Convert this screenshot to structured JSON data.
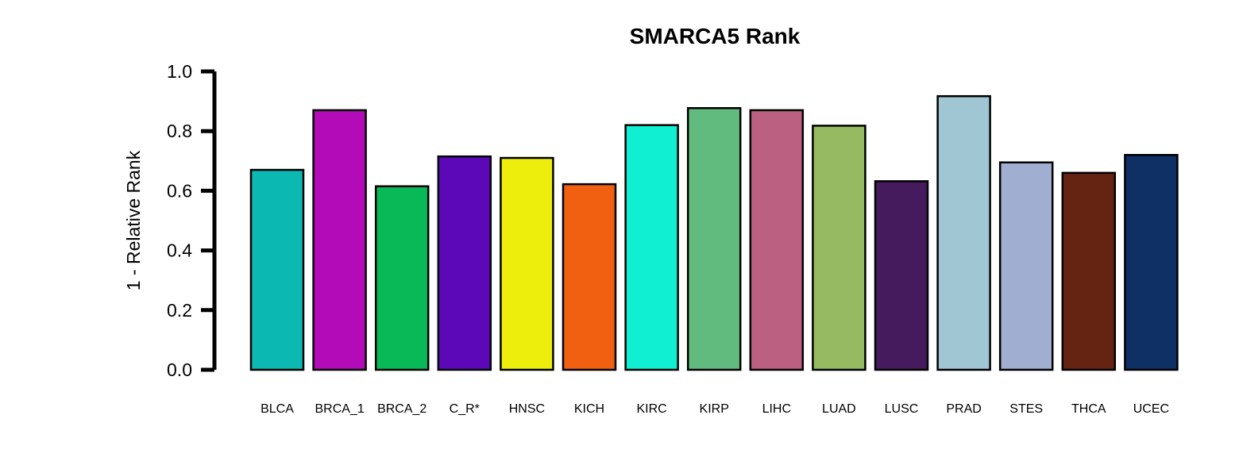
{
  "chart_data": {
    "type": "bar",
    "title": "SMARCA5 Rank",
    "xlabel": "",
    "ylabel": "1 - Relative Rank",
    "ylim": [
      0,
      1
    ],
    "yticks": [
      "0.0",
      "0.2",
      "0.4",
      "0.6",
      "0.8",
      "1.0"
    ],
    "ytick_values": [
      0,
      0.2,
      0.4,
      0.6,
      0.8,
      1.0
    ],
    "grid": false,
    "legend": "none",
    "categories": [
      "BLCA",
      "BRCA_1",
      "BRCA_2",
      "C_R*",
      "HNSC",
      "KICH",
      "KIRC",
      "KIRP",
      "LIHC",
      "LUAD",
      "LUSC",
      "PRAD",
      "STES",
      "THCA",
      "UCEC"
    ],
    "values": [
      0.67,
      0.87,
      0.615,
      0.715,
      0.71,
      0.622,
      0.82,
      0.877,
      0.87,
      0.818,
      0.632,
      0.917,
      0.695,
      0.66,
      0.72
    ],
    "colors": [
      "#0CB9B2",
      "#B30BB7",
      "#09B957",
      "#5C08B9",
      "#EEEE0C",
      "#F06010",
      "#10EFD1",
      "#61BA7E",
      "#BB6080",
      "#96BA61",
      "#461B5E",
      "#A0C5D3",
      "#A0AED1",
      "#652312",
      "#0E3064"
    ]
  }
}
